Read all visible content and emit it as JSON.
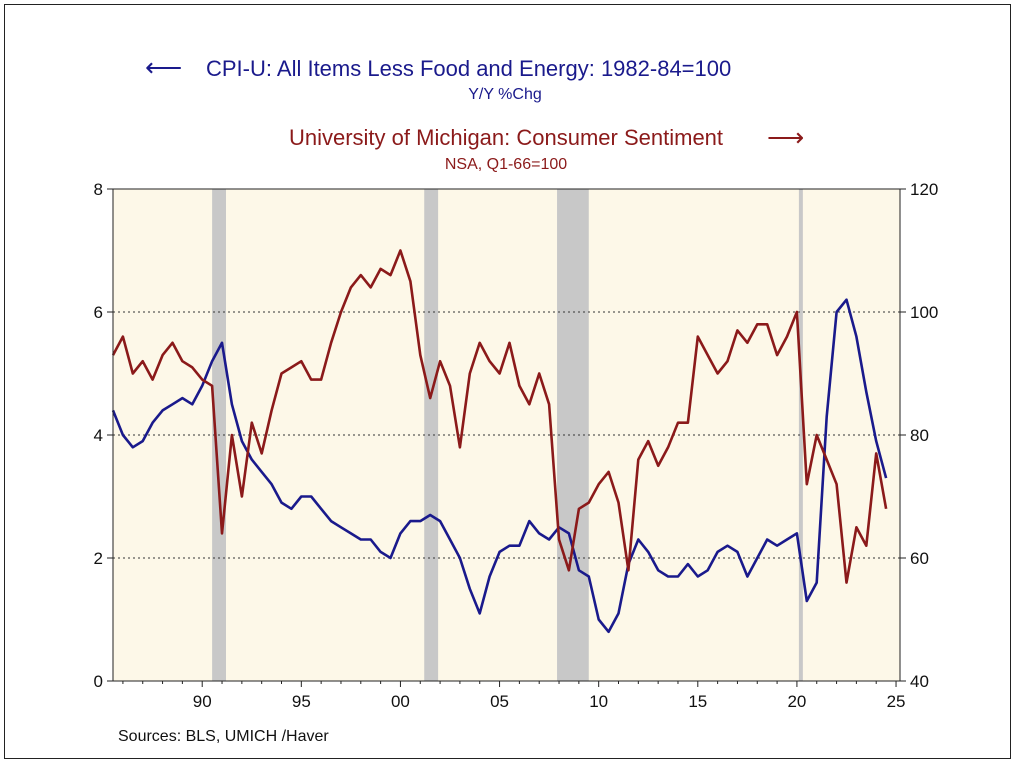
{
  "chart_data": {
    "type": "line",
    "series": [
      {
        "name": "CPI-U: All Items Less Food and Energy: 1982-84=100",
        "subtitle": "Y/Y %Chg",
        "axis": "left",
        "color": "#1a1a8c",
        "x": [
          1985.5,
          1986.0,
          1986.5,
          1987.0,
          1987.5,
          1988.0,
          1988.5,
          1989.0,
          1989.5,
          1990.0,
          1990.5,
          1991.0,
          1991.5,
          1992.0,
          1992.5,
          1993.0,
          1993.5,
          1994.0,
          1994.5,
          1995.0,
          1995.5,
          1996.0,
          1996.5,
          1997.0,
          1997.5,
          1998.0,
          1998.5,
          1999.0,
          1999.5,
          2000.0,
          2000.5,
          2001.0,
          2001.5,
          2002.0,
          2002.5,
          2003.0,
          2003.5,
          2004.0,
          2004.5,
          2005.0,
          2005.5,
          2006.0,
          2006.5,
          2007.0,
          2007.5,
          2008.0,
          2008.5,
          2009.0,
          2009.5,
          2010.0,
          2010.5,
          2011.0,
          2011.5,
          2012.0,
          2012.5,
          2013.0,
          2013.5,
          2014.0,
          2014.5,
          2015.0,
          2015.5,
          2016.0,
          2016.5,
          2017.0,
          2017.5,
          2018.0,
          2018.5,
          2019.0,
          2019.5,
          2020.0,
          2020.5,
          2021.0,
          2021.5,
          2022.0,
          2022.5,
          2023.0,
          2023.5,
          2024.0,
          2024.5
        ],
        "values": [
          4.4,
          4.0,
          3.8,
          3.9,
          4.2,
          4.4,
          4.5,
          4.6,
          4.5,
          4.8,
          5.2,
          5.5,
          4.5,
          3.9,
          3.6,
          3.4,
          3.2,
          2.9,
          2.8,
          3.0,
          3.0,
          2.8,
          2.6,
          2.5,
          2.4,
          2.3,
          2.3,
          2.1,
          2.0,
          2.4,
          2.6,
          2.6,
          2.7,
          2.6,
          2.3,
          2.0,
          1.5,
          1.1,
          1.7,
          2.1,
          2.2,
          2.2,
          2.6,
          2.4,
          2.3,
          2.5,
          2.4,
          1.8,
          1.7,
          1.0,
          0.8,
          1.1,
          1.9,
          2.3,
          2.1,
          1.8,
          1.7,
          1.7,
          1.9,
          1.7,
          1.8,
          2.1,
          2.2,
          2.1,
          1.7,
          2.0,
          2.3,
          2.2,
          2.3,
          2.4,
          1.3,
          1.6,
          4.3,
          6.0,
          6.2,
          5.6,
          4.7,
          3.9,
          3.3
        ]
      },
      {
        "name": "University of Michigan: Consumer Sentiment",
        "subtitle": "NSA, Q1-66=100",
        "axis": "right",
        "color": "#8b1a1a",
        "x": [
          1985.5,
          1986.0,
          1986.5,
          1987.0,
          1987.5,
          1988.0,
          1988.5,
          1989.0,
          1989.5,
          1990.0,
          1990.5,
          1991.0,
          1991.5,
          1992.0,
          1992.5,
          1993.0,
          1993.5,
          1994.0,
          1994.5,
          1995.0,
          1995.5,
          1996.0,
          1996.5,
          1997.0,
          1997.5,
          1998.0,
          1998.5,
          1999.0,
          1999.5,
          2000.0,
          2000.5,
          2001.0,
          2001.5,
          2002.0,
          2002.5,
          2003.0,
          2003.5,
          2004.0,
          2004.5,
          2005.0,
          2005.5,
          2006.0,
          2006.5,
          2007.0,
          2007.5,
          2008.0,
          2008.5,
          2009.0,
          2009.5,
          2010.0,
          2010.5,
          2011.0,
          2011.5,
          2012.0,
          2012.5,
          2013.0,
          2013.5,
          2014.0,
          2014.5,
          2015.0,
          2015.5,
          2016.0,
          2016.5,
          2017.0,
          2017.5,
          2018.0,
          2018.5,
          2019.0,
          2019.5,
          2020.0,
          2020.5,
          2021.0,
          2021.5,
          2022.0,
          2022.5,
          2023.0,
          2023.5,
          2024.0,
          2024.5
        ],
        "values": [
          93,
          96,
          90,
          92,
          89,
          93,
          95,
          92,
          91,
          89,
          88,
          64,
          80,
          70,
          82,
          77,
          84,
          90,
          91,
          92,
          89,
          89,
          95,
          100,
          104,
          106,
          104,
          107,
          106,
          110,
          105,
          93,
          86,
          92,
          88,
          78,
          90,
          95,
          92,
          90,
          95,
          88,
          85,
          90,
          85,
          63,
          58,
          68,
          69,
          72,
          74,
          69,
          58,
          76,
          79,
          75,
          78,
          82,
          82,
          96,
          93,
          90,
          92,
          97,
          95,
          98,
          98,
          93,
          96,
          100,
          72,
          80,
          76,
          72,
          56,
          65,
          62,
          77,
          68
        ]
      }
    ],
    "left_axis": {
      "ylim": [
        0,
        8
      ],
      "ticks": [
        0,
        2,
        4,
        6,
        8
      ]
    },
    "right_axis": {
      "ylim": [
        40,
        120
      ],
      "ticks": [
        40,
        60,
        80,
        100,
        120
      ]
    },
    "x_axis": {
      "xlim": [
        1985.5,
        2025.2
      ],
      "ticks": [
        1990,
        1995,
        2000,
        2005,
        2010,
        2015,
        2020,
        2025
      ],
      "tick_labels": [
        "90",
        "95",
        "00",
        "05",
        "10",
        "15",
        "20",
        "25"
      ]
    },
    "recessions": [
      [
        1990.5,
        1991.2
      ],
      [
        2001.2,
        2001.9
      ],
      [
        2007.9,
        2009.5
      ],
      [
        2020.1,
        2020.3
      ]
    ],
    "gridlines": [
      2,
      4,
      6
    ],
    "plot_background": "#fdf8e8",
    "recession_color": "#c8c8c8",
    "source": "Sources:  BLS, UMICH /Haver"
  },
  "legend": {
    "blue_arrow": "⟵",
    "red_arrow": "⟶"
  }
}
